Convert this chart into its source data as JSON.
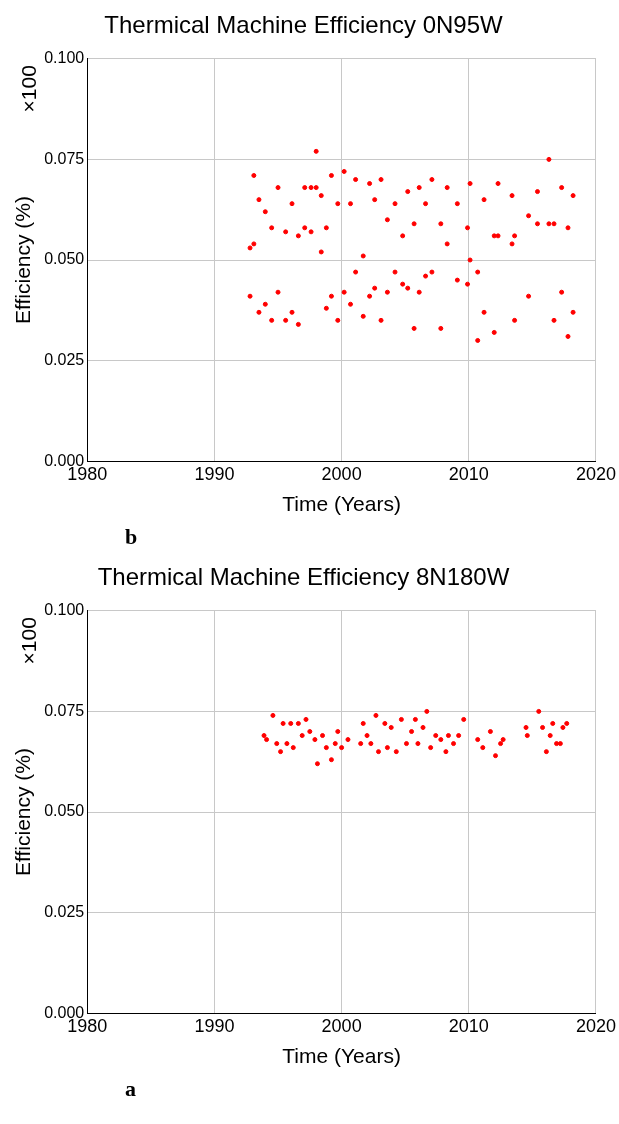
{
  "chart_data": [
    {
      "type": "scatter",
      "title": "Thermical Machine Efficiency 0N95W",
      "xlabel": "Time (Years)",
      "ylabel": "Efficiency (%)",
      "annotations": [
        "×100",
        "b"
      ],
      "xlim": [
        1980,
        2020
      ],
      "xticks": [
        1980,
        1990,
        2000,
        2010,
        2020
      ],
      "ylim": [
        0,
        0.1
      ],
      "yticks": [
        {
          "value": 0,
          "label": "0.000"
        },
        {
          "value": 0.025,
          "label": "0.025"
        },
        {
          "value": 0.05,
          "label": "0.050"
        },
        {
          "value": 0.075,
          "label": "0.075"
        },
        {
          "value": 0.1,
          "label": "0.100"
        }
      ],
      "grid": true,
      "marker": "circle",
      "series": [
        {
          "color": "#ff0000",
          "x": [
            1992.8,
            1992.8,
            1993.1,
            1993.1,
            1993.5,
            1993.5,
            1994.0,
            1994.0,
            1994.5,
            1994.5,
            1995.0,
            1995.0,
            1995.6,
            1995.6,
            1996.1,
            1996.1,
            1996.6,
            1996.6,
            1997.1,
            1997.1,
            1997.6,
            1997.6,
            1998.0,
            1998.0,
            1998.4,
            1998.4,
            1998.8,
            1998.8,
            1999.2,
            1999.2,
            1999.7,
            1999.7,
            2000.2,
            2000.2,
            2000.7,
            2000.7,
            2001.1,
            2001.1,
            2001.7,
            2001.7,
            2002.2,
            2002.2,
            2002.6,
            2002.6,
            2003.1,
            2003.1,
            2003.6,
            2003.6,
            2004.2,
            2004.2,
            2004.8,
            2004.8,
            2005.2,
            2005.2,
            2005.7,
            2005.7,
            2006.1,
            2006.1,
            2006.6,
            2006.6,
            2007.1,
            2007.1,
            2007.8,
            2007.8,
            2008.3,
            2008.3,
            2009.1,
            2009.1,
            2009.9,
            2009.9,
            2010.1,
            2010.1,
            2010.7,
            2010.7,
            2011.2,
            2011.2,
            2012.0,
            2012.0,
            2012.3,
            2012.3,
            2013.4,
            2013.4,
            2013.6,
            2013.6,
            2014.7,
            2014.7,
            2015.4,
            2015.4,
            2016.3,
            2016.3,
            2016.7,
            2016.7,
            2017.3,
            2017.3,
            2017.8,
            2017.8,
            2018.2,
            2018.2
          ],
          "values": [
            0.053,
            0.041,
            0.071,
            0.054,
            0.065,
            0.037,
            0.062,
            0.039,
            0.058,
            0.035,
            0.068,
            0.042,
            0.057,
            0.035,
            0.064,
            0.037,
            0.056,
            0.034,
            0.068,
            0.058,
            0.068,
            0.057,
            0.077,
            0.068,
            0.066,
            0.052,
            0.058,
            0.038,
            0.071,
            0.041,
            0.064,
            0.035,
            0.072,
            0.042,
            0.064,
            0.039,
            0.07,
            0.047,
            0.051,
            0.036,
            0.069,
            0.041,
            0.065,
            0.043,
            0.07,
            0.035,
            0.06,
            0.042,
            0.064,
            0.047,
            0.056,
            0.044,
            0.067,
            0.043,
            0.059,
            0.033,
            0.068,
            0.042,
            0.064,
            0.046,
            0.07,
            0.047,
            0.059,
            0.033,
            0.068,
            0.054,
            0.064,
            0.045,
            0.058,
            0.044,
            0.069,
            0.05,
            0.047,
            0.03,
            0.065,
            0.037,
            0.056,
            0.032,
            0.069,
            0.056,
            0.066,
            0.054,
            0.056,
            0.035,
            0.061,
            0.041,
            0.067,
            0.059,
            0.075,
            0.059,
            0.059,
            0.035,
            0.068,
            0.042,
            0.058,
            0.031,
            0.066,
            0.037
          ]
        }
      ]
    },
    {
      "type": "scatter",
      "title": "Thermical Machine Efficiency 8N180W",
      "xlabel": "Time (Years)",
      "ylabel": "Efficiency (%)",
      "annotations": [
        "×100",
        "a"
      ],
      "xlim": [
        1980,
        2020
      ],
      "xticks": [
        1980,
        1990,
        2000,
        2010,
        2020
      ],
      "ylim": [
        0,
        0.1
      ],
      "yticks": [
        {
          "value": 0,
          "label": "0.000"
        },
        {
          "value": 0.025,
          "label": "0.025"
        },
        {
          "value": 0.05,
          "label": "0.050"
        },
        {
          "value": 0.075,
          "label": "0.075"
        },
        {
          "value": 0.1,
          "label": "0.100"
        }
      ],
      "grid": true,
      "marker": "circle",
      "series": [
        {
          "color": "#ff0000",
          "x": [
            1993.9,
            1994.1,
            1994.6,
            1994.9,
            1995.2,
            1995.4,
            1995.7,
            1996.0,
            1996.2,
            1996.6,
            1996.9,
            1997.2,
            1997.5,
            1997.9,
            1998.1,
            1998.5,
            1998.8,
            1999.2,
            1999.5,
            1999.7,
            2000.0,
            2000.5,
            2001.5,
            2001.7,
            2002.0,
            2002.3,
            2002.7,
            2002.9,
            2003.4,
            2003.6,
            2003.9,
            2004.3,
            2004.7,
            2005.1,
            2005.5,
            2005.8,
            2006.0,
            2006.4,
            2006.7,
            2007.0,
            2007.4,
            2007.8,
            2008.2,
            2008.4,
            2008.8,
            2009.2,
            2009.6,
            2010.7,
            2011.1,
            2011.7,
            2012.1,
            2012.5,
            2012.7,
            2014.5,
            2014.6,
            2015.5,
            2015.8,
            2016.1,
            2016.4,
            2016.6,
            2016.9,
            2017.2,
            2017.4,
            2017.7
          ],
          "values": [
            0.069,
            0.068,
            0.074,
            0.067,
            0.065,
            0.072,
            0.067,
            0.072,
            0.066,
            0.072,
            0.069,
            0.073,
            0.07,
            0.068,
            0.062,
            0.069,
            0.066,
            0.063,
            0.067,
            0.07,
            0.066,
            0.068,
            0.067,
            0.072,
            0.069,
            0.067,
            0.074,
            0.065,
            0.072,
            0.066,
            0.071,
            0.065,
            0.073,
            0.067,
            0.07,
            0.073,
            0.067,
            0.071,
            0.075,
            0.066,
            0.069,
            0.068,
            0.065,
            0.069,
            0.067,
            0.069,
            0.073,
            0.068,
            0.066,
            0.07,
            0.064,
            0.067,
            0.068,
            0.071,
            0.069,
            0.075,
            0.071,
            0.065,
            0.069,
            0.072,
            0.067,
            0.067,
            0.071,
            0.072
          ]
        }
      ]
    }
  ]
}
